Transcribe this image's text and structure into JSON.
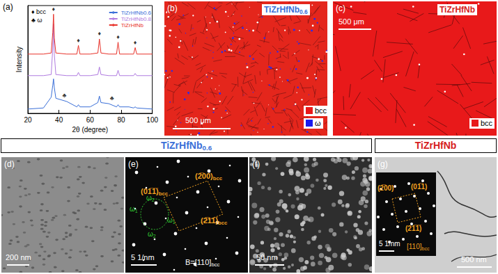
{
  "chart_data": {
    "type": "line",
    "label": "(a)",
    "xlabel": "2θ (degree)",
    "ylabel": "Intensity",
    "x": [
      20,
      30,
      35,
      36,
      36.5,
      37,
      38,
      45,
      51.5,
      52.5,
      53.5,
      60,
      65,
      66,
      67,
      72,
      77,
      78,
      79,
      85,
      88,
      89,
      90,
      100
    ],
    "series": [
      {
        "name": "TiZrHfNb0.6",
        "color": "#3a6fd8",
        "values": [
          0.4,
          0.5,
          1.5,
          2.6,
          3.2,
          2.4,
          1.4,
          1.1,
          0.6,
          0.8,
          0.6,
          0.6,
          1.0,
          1.6,
          1.0,
          0.9,
          0.6,
          0.8,
          0.6,
          0.6,
          0.5,
          0.6,
          0.5,
          0.4
        ]
      },
      {
        "name": "TiZrHfNb0.8",
        "color": "#b07be0",
        "values": [
          3.5,
          3.5,
          3.6,
          6.0,
          8.3,
          5.5,
          3.6,
          3.5,
          3.5,
          3.8,
          3.5,
          3.5,
          3.6,
          4.3,
          3.6,
          3.5,
          3.5,
          4.0,
          3.5,
          3.5,
          3.5,
          3.7,
          3.5,
          3.5
        ]
      },
      {
        "name": "TiZrHfNb",
        "color": "#e8322a",
        "values": [
          5.5,
          5.5,
          5.6,
          7.5,
          9.2,
          7.0,
          5.6,
          5.5,
          5.5,
          6.3,
          5.5,
          5.5,
          5.6,
          6.9,
          5.6,
          5.5,
          5.5,
          6.6,
          5.5,
          5.5,
          5.5,
          6.1,
          5.5,
          5.5
        ]
      }
    ],
    "xlim": [
      20,
      100
    ],
    "xticks": [
      20,
      40,
      60,
      80,
      100
    ],
    "ylim": [
      0,
      10
    ],
    "tick_labels": "x",
    "grid": false,
    "legend": "upper right",
    "phase_markers": [
      {
        "symbol": "♦",
        "label": "bcc",
        "x": [
          36.5,
          52.5,
          66,
          78,
          89
        ],
        "y": [
          9.7,
          6.8,
          7.4,
          7.1,
          6.6
        ]
      },
      {
        "symbol": "♣",
        "label": "ω",
        "x": [
          43.5,
          74
        ],
        "y": [
          1.7,
          1.4
        ]
      }
    ]
  },
  "panel_b": {
    "label": "(b)",
    "title": "TiZrHfNb0.6",
    "scale_bar": "500 μm",
    "phase_key": [
      {
        "label": "bcc",
        "color": "#e8191a"
      },
      {
        "label": "ω",
        "color": "#1a1aee"
      }
    ]
  },
  "panel_c": {
    "label": "(c)",
    "title": "TiZrHfNb",
    "scale_bar": "500 μm",
    "phase_key": [
      {
        "label": "bcc",
        "color": "#e8191a"
      }
    ]
  },
  "headers": [
    {
      "text": "TiZrHfNb0.6",
      "color": "#3a6fd8"
    },
    {
      "text": "TiZrHfNb",
      "color": "#d62020"
    }
  ],
  "panel_d": {
    "label": "(d)",
    "scale_bar": "200 nm"
  },
  "panel_e": {
    "label": "(e)",
    "scale_bar": "5 1/nm",
    "zone_axis": "B=[110]bcc",
    "spots": [
      "(2̅00)bcc",
      "(01̅1̅)bcc",
      "(2̅11̅)bcc"
    ],
    "omega_spots": [
      "ω1",
      "ω2",
      "ω2",
      "ω1"
    ]
  },
  "panel_f": {
    "label": "(f)",
    "scale_bar": "50 nm"
  },
  "panel_g": {
    "label": "(g)",
    "scale_bar": "500 nm",
    "inset_scale_bar": "5 1/nm",
    "spots": [
      "(2̅00)",
      "(01̅1)",
      "(21̅1̅)"
    ],
    "zone_axis": "[110]bcc"
  }
}
